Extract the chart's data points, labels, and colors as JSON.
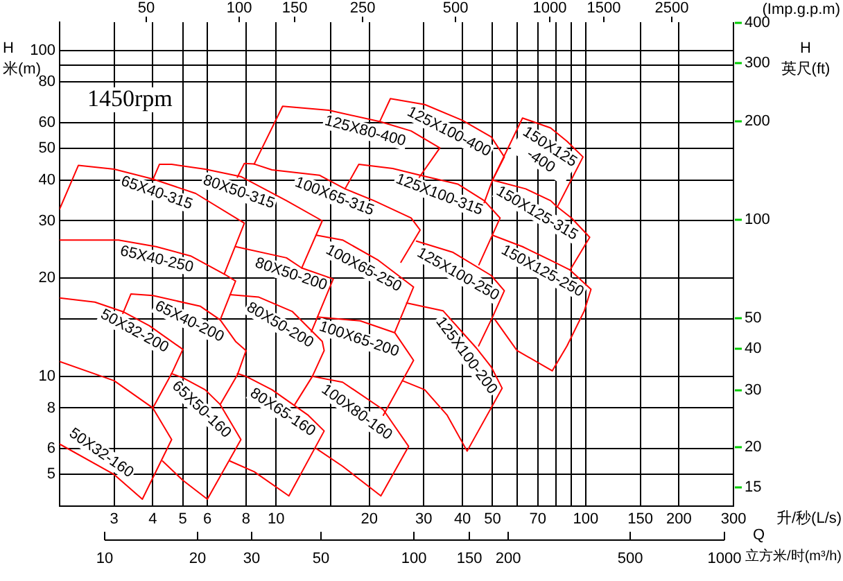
{
  "chart_data": {
    "type": "line",
    "title": "1450rpm",
    "xlabel": "升/秒(L/s)",
    "x2label": "(Imp.g.p.m)",
    "ylabel": "H\n米(m)",
    "y2label": "H\n英尺(ft)",
    "annotations": [
      "50",
      "100",
      "150",
      "250",
      "500",
      "1000",
      "1500",
      "2500",
      "15",
      "20",
      "30",
      "40",
      "50",
      "100",
      "200",
      "300",
      "400",
      "10",
      "20",
      "30",
      "50",
      "100",
      "150",
      "200",
      "500",
      "1000",
      "Q",
      "立方米/时(m³/h)"
    ],
    "log": "xy",
    "grid": true,
    "marker": "none",
    "xlim": [
      2,
      300
    ],
    "xticks": [
      3,
      4,
      5,
      6,
      8,
      10,
      {
        "value": 15,
        "label": null
      },
      20,
      30,
      40,
      50,
      {
        "value": 60,
        "label": null
      },
      70,
      {
        "value": 80,
        "label": null
      },
      {
        "value": 90,
        "label": null
      },
      100,
      150,
      200,
      300
    ],
    "ylim": [
      4,
      122
    ],
    "yticks": [
      5,
      6,
      8,
      10,
      {
        "value": 15,
        "label": null
      },
      20,
      30,
      40,
      50,
      60,
      80,
      {
        "value": 90,
        "label": null
      },
      100
    ],
    "series": [
      {
        "name": "65X40-315",
        "color": "#ff0000",
        "x": [
          2,
          2.3,
          3,
          4,
          5.5,
          7.9,
          6.8
        ],
        "values": [
          32.6,
          44.4,
          43.2,
          40.3,
          36.4,
          29.5,
          20.6
        ]
      },
      {
        "name": "80X50-315",
        "color": "#ff0000",
        "x": [
          4,
          4.2,
          4.6,
          5.9,
          7.7,
          10.8,
          14.1,
          12.1
        ],
        "values": [
          40.1,
          44.7,
          44.7,
          43.2,
          41,
          34.6,
          30,
          21.5
        ]
      },
      {
        "name": "100X65-315",
        "color": "#ff0000",
        "x": [
          7.5,
          7.9,
          8.5,
          9.7,
          13.8,
          16.7,
          20.7,
          27.3,
          29.2,
          25.3
        ],
        "values": [
          40.8,
          45,
          44.8,
          43,
          41.4,
          37.6,
          34.6,
          30.6,
          28.1,
          22.4
        ]
      },
      {
        "name": "125X100-315",
        "color": "#ff0000",
        "x": [
          16.7,
          18.5,
          23.8,
          29.2,
          38.6,
          47,
          52.9,
          45.2
        ],
        "values": [
          37.6,
          44.7,
          43.4,
          41.4,
          38.9,
          34.6,
          30.6,
          22
        ]
      },
      {
        "name": "150X125-315",
        "color": "#ff0000",
        "x": [
          50,
          64,
          77,
          81,
          90,
          103,
          89
        ],
        "values": [
          40,
          37.6,
          34.6,
          33.1,
          30.6,
          26.7,
          21.2
        ]
      },
      {
        "name": "125X80-400",
        "color": "#ff0000",
        "x": [
          8.5,
          10.5,
          14.8,
          21.7,
          27.3,
          33.8,
          29
        ],
        "values": [
          44.8,
          67.4,
          65.5,
          60.4,
          56.6,
          50.2,
          40.8
        ]
      },
      {
        "name": "125X100-400",
        "color": "#ff0000",
        "x": [
          21.6,
          23.4,
          30.2,
          40,
          49.5,
          54.6,
          50,
          47
        ],
        "values": [
          60.4,
          71.1,
          68.2,
          61,
          54.3,
          47.1,
          40,
          34.1
        ]
      },
      {
        "name": "150X125-400",
        "color": "#ff0000",
        "x": [
          50,
          62.5,
          77,
          87,
          98,
          81
        ],
        "values": [
          40,
          62,
          57.8,
          52.6,
          47.1,
          33.1
        ]
      },
      {
        "name": "65X40-250",
        "color": "#ff0000",
        "x": [
          2,
          3.1,
          4.1,
          5.3,
          6.8,
          7.4,
          6.6
        ],
        "values": [
          26.2,
          26.2,
          25,
          23.4,
          20.6,
          19.6,
          14.9
        ]
      },
      {
        "name": "80X50-200",
        "color": "#ff0000",
        "x": [
          7.4,
          10.8,
          12.1,
          15.3,
          13
        ],
        "values": [
          25,
          23.1,
          21.5,
          19.9,
          13.7
        ]
      },
      {
        "name": "100X65-250",
        "color": "#ff0000",
        "x": [
          13.5,
          16.4,
          21.4,
          27.8,
          24.2
        ],
        "values": [
          27.1,
          26.2,
          22.7,
          18.8,
          13.7
        ]
      },
      {
        "name": "125X100-250",
        "color": "#ff0000",
        "x": [
          28.4,
          37.3,
          49.5,
          54.6,
          50,
          45.1
        ],
        "values": [
          26,
          24,
          20.4,
          18.3,
          15.2,
          12.4
        ]
      },
      {
        "name": "150X125-250",
        "color": "#ff0000",
        "x": [
          50,
          62.5,
          77,
          89,
          104,
          99,
          87,
          78,
          60,
          51
        ],
        "values": [
          27.1,
          25,
          22.7,
          21.2,
          18.5,
          15.9,
          12.4,
          10.4,
          12,
          14.9
        ]
      },
      {
        "name": "50X32-200",
        "color": "#ff0000",
        "x": [
          2,
          2.6,
          3.2,
          3.9,
          5,
          4.6,
          4
        ],
        "values": [
          17.4,
          16.9,
          15.8,
          14.3,
          12.1,
          10.2,
          8
        ]
      },
      {
        "name": "65X40-200",
        "color": "#ff0000",
        "x": [
          3.2,
          3.4,
          4,
          5.7,
          6.6,
          7.4,
          8,
          7.5,
          6.6
        ],
        "values": [
          15.6,
          17.9,
          17.7,
          16.4,
          14.9,
          12.8,
          12,
          10.1,
          8.2
        ]
      },
      {
        "name": "80X50-200",
        "color": "#ff0000",
        "x": [
          7.1,
          8.8,
          11.3,
          14.1,
          14.3,
          13.1,
          11.5
        ],
        "values": [
          17.8,
          17.5,
          15.8,
          12.8,
          12,
          10,
          8.2
        ]
      },
      {
        "name": "100X65-200",
        "color": "#ff0000",
        "x": [
          13.6,
          18.7,
          24.2,
          27.8,
          22.2
        ],
        "values": [
          15.2,
          14.8,
          13.6,
          11.2,
          7.6
        ]
      },
      {
        "name": "125X100-200",
        "color": "#ff0000",
        "x": [
          26.4,
          34.6,
          44.4,
          49.5,
          53.7,
          41.4,
          35.7,
          30.2,
          25.6
        ],
        "values": [
          16.8,
          15.9,
          12.2,
          10.7,
          9.2,
          5.9,
          7.6,
          9.1,
          9.7
        ]
      },
      {
        "name": "50X32-160",
        "color": "#ff0000",
        "x": [
          2,
          3,
          4,
          4.6,
          3.7,
          3,
          2
        ],
        "values": [
          11.1,
          9.7,
          8,
          6.4,
          4.2,
          5,
          6.2
        ]
      },
      {
        "name": "65X50-160",
        "color": "#ff0000",
        "x": [
          4.6,
          5,
          5.9,
          6.6,
          7.7,
          6,
          5,
          4.3
        ],
        "values": [
          10.2,
          9.9,
          9.1,
          8.2,
          6.4,
          4.2,
          4.8,
          5.5
        ]
      },
      {
        "name": "80X65-160",
        "color": "#ff0000",
        "x": [
          7.5,
          8,
          9.7,
          12.7,
          14.3,
          11,
          8.5,
          7.1
        ],
        "values": [
          10.2,
          10,
          9.1,
          7.6,
          6.8,
          4.3,
          5.1,
          5.5
        ]
      },
      {
        "name": "100X80-160",
        "color": "#ff0000",
        "x": [
          13.1,
          16.4,
          22.2,
          26.8,
          21.8,
          16.4,
          13.5
        ],
        "values": [
          10,
          9.6,
          7.9,
          6.1,
          4.3,
          5.3,
          6
        ]
      }
    ]
  }
}
